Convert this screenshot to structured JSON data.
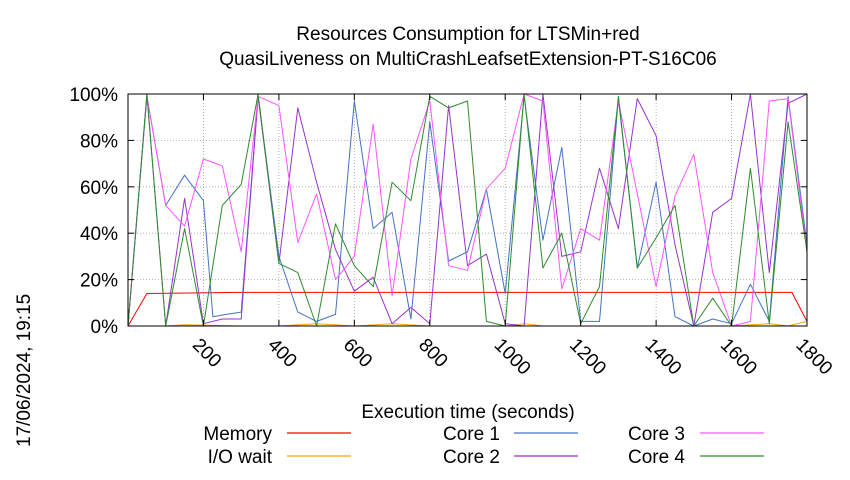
{
  "chart_data": {
    "type": "line",
    "title": "Resources Consumption for LTSMin+red",
    "subtitle": "QuasiLiveness on MultiCrashLeafsetExtension-PT-S16C06",
    "xlabel": "Execution time (seconds)",
    "ylabel": "",
    "side_label": "17/06/2024, 19:15",
    "xlim": [
      0,
      1800
    ],
    "ylim": [
      0,
      100
    ],
    "x_ticks": [
      "200",
      "400",
      "600",
      "800",
      "1000",
      "1200",
      "1400",
      "1600",
      "1800"
    ],
    "y_ticks": [
      "0%",
      "20%",
      "40%",
      "60%",
      "80%",
      "100%"
    ],
    "grid": true,
    "legend_position": "bottom",
    "series": [
      {
        "name": "Memory",
        "color": "#ff0000",
        "x": [
          0,
          50,
          300,
          500,
          700,
          1000,
          1200,
          1400,
          1600,
          1760,
          1800
        ],
        "y": [
          0,
          14,
          14.5,
          14.5,
          14.5,
          14.5,
          14.5,
          14.5,
          14.5,
          14.5,
          2
        ]
      },
      {
        "name": "I/O wait",
        "color": "#ffa500",
        "x": [
          0,
          50,
          100,
          150,
          300,
          400,
          500,
          600,
          700,
          800,
          1000,
          1050,
          1100,
          1300,
          1500,
          1600,
          1700,
          1750,
          1800
        ],
        "y": [
          0,
          0,
          0,
          0.5,
          0,
          0,
          1,
          0,
          1,
          0,
          0,
          1,
          0,
          0,
          0,
          0,
          1,
          0,
          2
        ]
      },
      {
        "name": "Core 1",
        "color": "#4472c4",
        "x": [
          0,
          50,
          100,
          150,
          200,
          225,
          260,
          300,
          345,
          400,
          450,
          500,
          550,
          600,
          650,
          700,
          750,
          800,
          850,
          900,
          950,
          1000,
          1050,
          1100,
          1150,
          1200,
          1250,
          1300,
          1350,
          1400,
          1450,
          1500,
          1550,
          1600,
          1650,
          1700,
          1750,
          1800
        ],
        "y": [
          0,
          99,
          52,
          65,
          54,
          4,
          5,
          6,
          99,
          30,
          6,
          2,
          5,
          97,
          42,
          49,
          3,
          88,
          28,
          32,
          59,
          14,
          99,
          37,
          77,
          2,
          2,
          98,
          25,
          62,
          4,
          0,
          3,
          1,
          18,
          2,
          99,
          35
        ]
      },
      {
        "name": "Core 2",
        "color": "#9932cc",
        "x": [
          0,
          50,
          100,
          150,
          200,
          250,
          300,
          345,
          400,
          450,
          500,
          550,
          600,
          650,
          700,
          750,
          800,
          850,
          900,
          950,
          1000,
          1050,
          1100,
          1150,
          1200,
          1250,
          1300,
          1350,
          1400,
          1450,
          1500,
          1550,
          1600,
          1650,
          1700,
          1750,
          1800
        ],
        "y": [
          0,
          100,
          0,
          55,
          1,
          3,
          3,
          99,
          27,
          94,
          62,
          33,
          15,
          21,
          1,
          8,
          1,
          95,
          26,
          31,
          1,
          0,
          100,
          30,
          32,
          68,
          42,
          98,
          82,
          35,
          0,
          49,
          55,
          100,
          23,
          96,
          100
        ]
      },
      {
        "name": "Core 3",
        "color": "#ff55ff",
        "x": [
          0,
          50,
          100,
          150,
          200,
          250,
          300,
          345,
          400,
          450,
          500,
          550,
          600,
          650,
          700,
          750,
          800,
          850,
          900,
          950,
          1000,
          1050,
          1100,
          1150,
          1200,
          1250,
          1300,
          1350,
          1400,
          1450,
          1500,
          1550,
          1600,
          1650,
          1700,
          1750,
          1800
        ],
        "y": [
          0,
          99,
          52,
          43,
          72,
          69,
          32,
          99,
          95,
          36,
          57,
          20,
          30,
          87,
          13,
          72,
          97,
          26,
          24,
          59,
          68,
          100,
          97,
          16,
          42,
          37,
          97,
          57,
          17,
          56,
          74,
          23,
          0,
          2,
          97,
          98,
          32
        ]
      },
      {
        "name": "Core 4",
        "color": "#2e8b2e",
        "x": [
          0,
          50,
          100,
          150,
          200,
          250,
          300,
          345,
          400,
          450,
          500,
          550,
          600,
          650,
          700,
          750,
          800,
          850,
          900,
          950,
          1000,
          1050,
          1100,
          1150,
          1200,
          1250,
          1300,
          1350,
          1400,
          1450,
          1500,
          1550,
          1600,
          1650,
          1700,
          1750,
          1800
        ],
        "y": [
          0,
          100,
          0,
          42,
          0,
          52,
          61,
          100,
          27,
          23,
          0,
          44,
          26,
          17,
          62,
          54,
          99,
          94,
          97,
          2,
          0,
          100,
          25,
          40,
          1,
          17,
          99,
          25,
          38,
          52,
          0,
          12,
          0,
          68,
          1,
          88,
          32
        ]
      }
    ]
  }
}
